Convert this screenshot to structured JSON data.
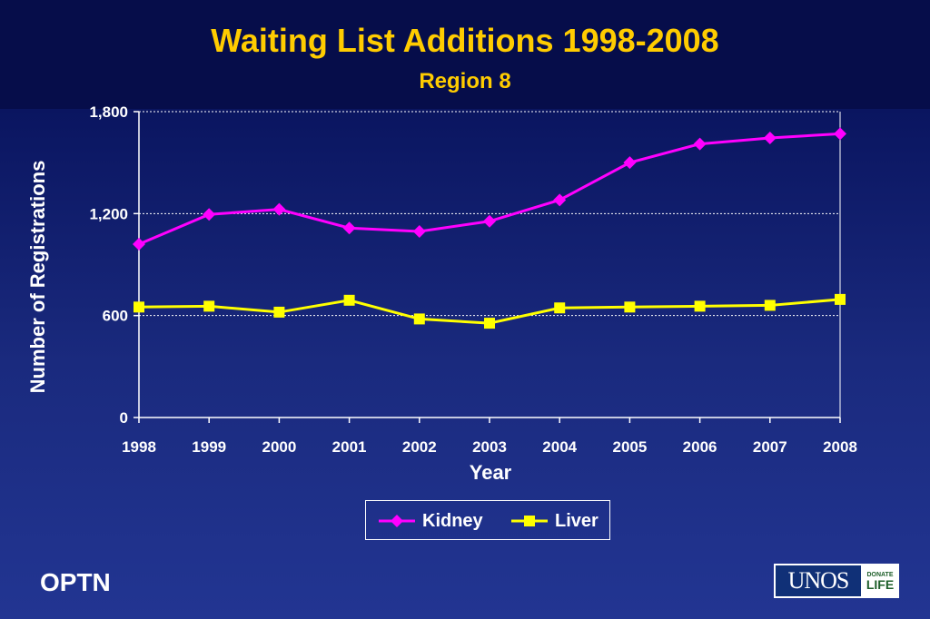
{
  "header": {
    "title": "Waiting List Additions 1998-2008",
    "subtitle": "Region 8"
  },
  "footer": {
    "brand": "OPTN",
    "logo_text": "UNOS",
    "logo_badge_top": "DONATE",
    "logo_badge_bottom": "LIFE"
  },
  "colors": {
    "title": "#ffcc00",
    "kidney": "#ff00ff",
    "liver": "#ffff00",
    "background": "#0a1560"
  },
  "chart_data": {
    "type": "line",
    "title": "Waiting List Additions 1998-2008",
    "subtitle": "Region 8",
    "xlabel": "Year",
    "ylabel": "Number of Registrations",
    "x": [
      1998,
      1999,
      2000,
      2001,
      2002,
      2003,
      2004,
      2005,
      2006,
      2007,
      2008
    ],
    "x_tick_labels": [
      "1998",
      "1999",
      "2000",
      "2001",
      "2002",
      "2003",
      "2004",
      "2005",
      "2006",
      "2007",
      "2008"
    ],
    "ylim": [
      0,
      1800
    ],
    "y_ticks": [
      0,
      600,
      1200,
      1800
    ],
    "y_tick_labels": [
      "0",
      "600",
      "1,200",
      "1,800"
    ],
    "grid": "horizontal dotted",
    "legend_position": "bottom",
    "series": [
      {
        "name": "Kidney",
        "marker": "diamond",
        "color": "#ff00ff",
        "values": [
          1020,
          1195,
          1225,
          1115,
          1095,
          1155,
          1280,
          1500,
          1610,
          1645,
          1670
        ]
      },
      {
        "name": "Liver",
        "marker": "square",
        "color": "#ffff00",
        "values": [
          650,
          655,
          620,
          690,
          580,
          555,
          645,
          650,
          655,
          660,
          695
        ]
      }
    ]
  }
}
